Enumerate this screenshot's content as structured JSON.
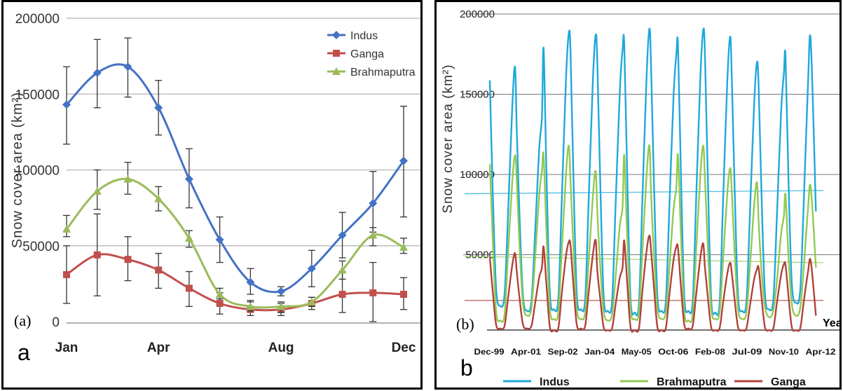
{
  "chart_data": [
    {
      "id": "a",
      "type": "line",
      "panel_label": "(a)",
      "corner_label": "a",
      "ylabel": "Snow cover area (km²)",
      "ylim": [
        0,
        200000
      ],
      "yticks": [
        "0",
        "50000",
        "100000",
        "150000",
        "200000"
      ],
      "x_ticks": [
        "Jan",
        "Apr",
        "Aug",
        "Dec"
      ],
      "x_tick_months": [
        1,
        4,
        8,
        12
      ],
      "months": [
        1,
        2,
        3,
        4,
        5,
        6,
        7,
        8,
        9,
        10,
        11,
        12
      ],
      "grid": true,
      "legend_position": "top-right",
      "series": [
        {
          "name": "Indus",
          "color": "#4472c4",
          "marker": "diamond",
          "values": [
            143000,
            164000,
            168000,
            141000,
            94000,
            54000,
            26000,
            20000,
            35000,
            57000,
            78000,
            106000
          ],
          "err_low": [
            117000,
            141000,
            148000,
            123000,
            75000,
            39000,
            18000,
            17000,
            23000,
            42000,
            59000,
            69000
          ],
          "err_high": [
            168000,
            186000,
            187000,
            159000,
            114000,
            69000,
            35000,
            23000,
            47000,
            72000,
            99000,
            142000
          ]
        },
        {
          "name": "Ganga",
          "color": "#c0504d",
          "marker": "square",
          "values": [
            31000,
            44000,
            41000,
            34000,
            22000,
            12000,
            8000,
            8000,
            12000,
            18000,
            19000,
            18000
          ],
          "err_low": [
            12000,
            17000,
            27000,
            22000,
            10000,
            5000,
            4000,
            4000,
            8000,
            6000,
            0,
            8000
          ],
          "err_high": [
            50000,
            71000,
            56000,
            45000,
            33000,
            19000,
            14000,
            12000,
            16000,
            33000,
            39000,
            29000
          ]
        },
        {
          "name": "Brahmaputra",
          "color": "#9bbb59",
          "marker": "triangle",
          "values": [
            61000,
            86000,
            94000,
            81000,
            55000,
            18000,
            10000,
            10000,
            13000,
            34000,
            57000,
            49000
          ],
          "err_low": [
            56000,
            74000,
            84000,
            73000,
            49000,
            15000,
            7000,
            6000,
            10000,
            28000,
            50000,
            45000
          ],
          "err_high": [
            70000,
            100000,
            105000,
            89000,
            60000,
            22000,
            13000,
            13000,
            16000,
            40000,
            62000,
            55000
          ]
        }
      ]
    },
    {
      "id": "b",
      "type": "line",
      "panel_label": "(b)",
      "corner_label": "b",
      "ylabel": "Snow cover area (km²)",
      "xlabel": "Year",
      "ylim": [
        0,
        200000
      ],
      "yticks": [
        "50000",
        "100000",
        "150000",
        "200000"
      ],
      "x_ticks": [
        "Dec-99",
        "Apr-01",
        "Sep-02",
        "Jan-04",
        "May-05",
        "Oct-06",
        "Feb-08",
        "Jul-09",
        "Nov-10",
        "Apr-12"
      ],
      "x_range": [
        "Dec-99",
        "Apr-12"
      ],
      "grid": true,
      "legend_position": "bottom",
      "hlines": [
        {
          "series": "Indus",
          "start": 88000,
          "end": 90000
        },
        {
          "series": "Brahmaputra",
          "start": 49000,
          "end": 45000
        },
        {
          "series": "Ganga",
          "start": 21500,
          "end": 21500
        }
      ],
      "series": [
        {
          "name": "Indus",
          "color": "#1fa8dc",
          "peaks": [
            167000,
            136000,
            188000,
            187000,
            178000,
            191000,
            175000,
            190000,
            186000,
            170000,
            163000,
            183000
          ],
          "troughs": [
            18000,
            15000,
            16000,
            16000,
            15000,
            14000,
            15000,
            15000,
            14000,
            15000,
            16000,
            20000
          ],
          "end_value": 77000
        },
        {
          "name": "Brahmaputra",
          "color": "#92c953",
          "peaks": [
            112000,
            102000,
            118000,
            102000,
            80000,
            118000,
            92000,
            118000,
            104000,
            95000,
            74000,
            92000
          ],
          "troughs": [
            9000,
            12000,
            10000,
            10000,
            9000,
            10000,
            10000,
            9000,
            10000,
            10000,
            11000,
            12000
          ],
          "end_value": 42000
        },
        {
          "name": "Ganga",
          "color": "#b0433d",
          "peaks": [
            51000,
            42000,
            58000,
            59000,
            42000,
            62000,
            55000,
            57000,
            45000,
            41000,
            44000,
            46000
          ],
          "troughs": [
            4000,
            4000,
            3000,
            4000,
            3000,
            3000,
            3000,
            4000,
            3000,
            3000,
            3000,
            3000
          ],
          "end_value": 12000
        }
      ]
    }
  ]
}
